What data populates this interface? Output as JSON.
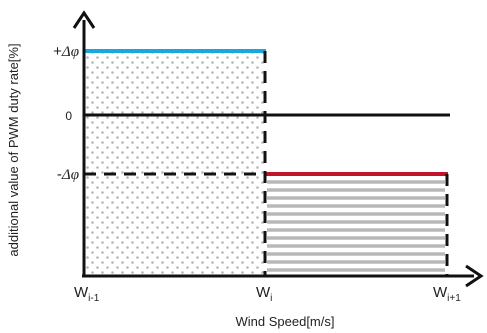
{
  "axes": {
    "ylabel": "additional value of PWM duty rate[%]",
    "xlabel": "Wind Speed[m/s]"
  },
  "y_ticks": {
    "plus": {
      "sign": "+",
      "symbol": "Δφ"
    },
    "zero": "0",
    "minus": {
      "sign": "-",
      "symbol": "Δφ"
    }
  },
  "x_ticks": [
    {
      "base": "W",
      "sub": "i-1"
    },
    {
      "base": "W",
      "sub": "i"
    },
    {
      "base": "W",
      "sub": "i+1"
    }
  ],
  "colors": {
    "upper_line": "#1aa7dd",
    "lower_line": "#c0142a",
    "axis": "#111111",
    "dot_fill": "#b5b5b5",
    "stripe_fill": "#b8b8b8"
  }
}
